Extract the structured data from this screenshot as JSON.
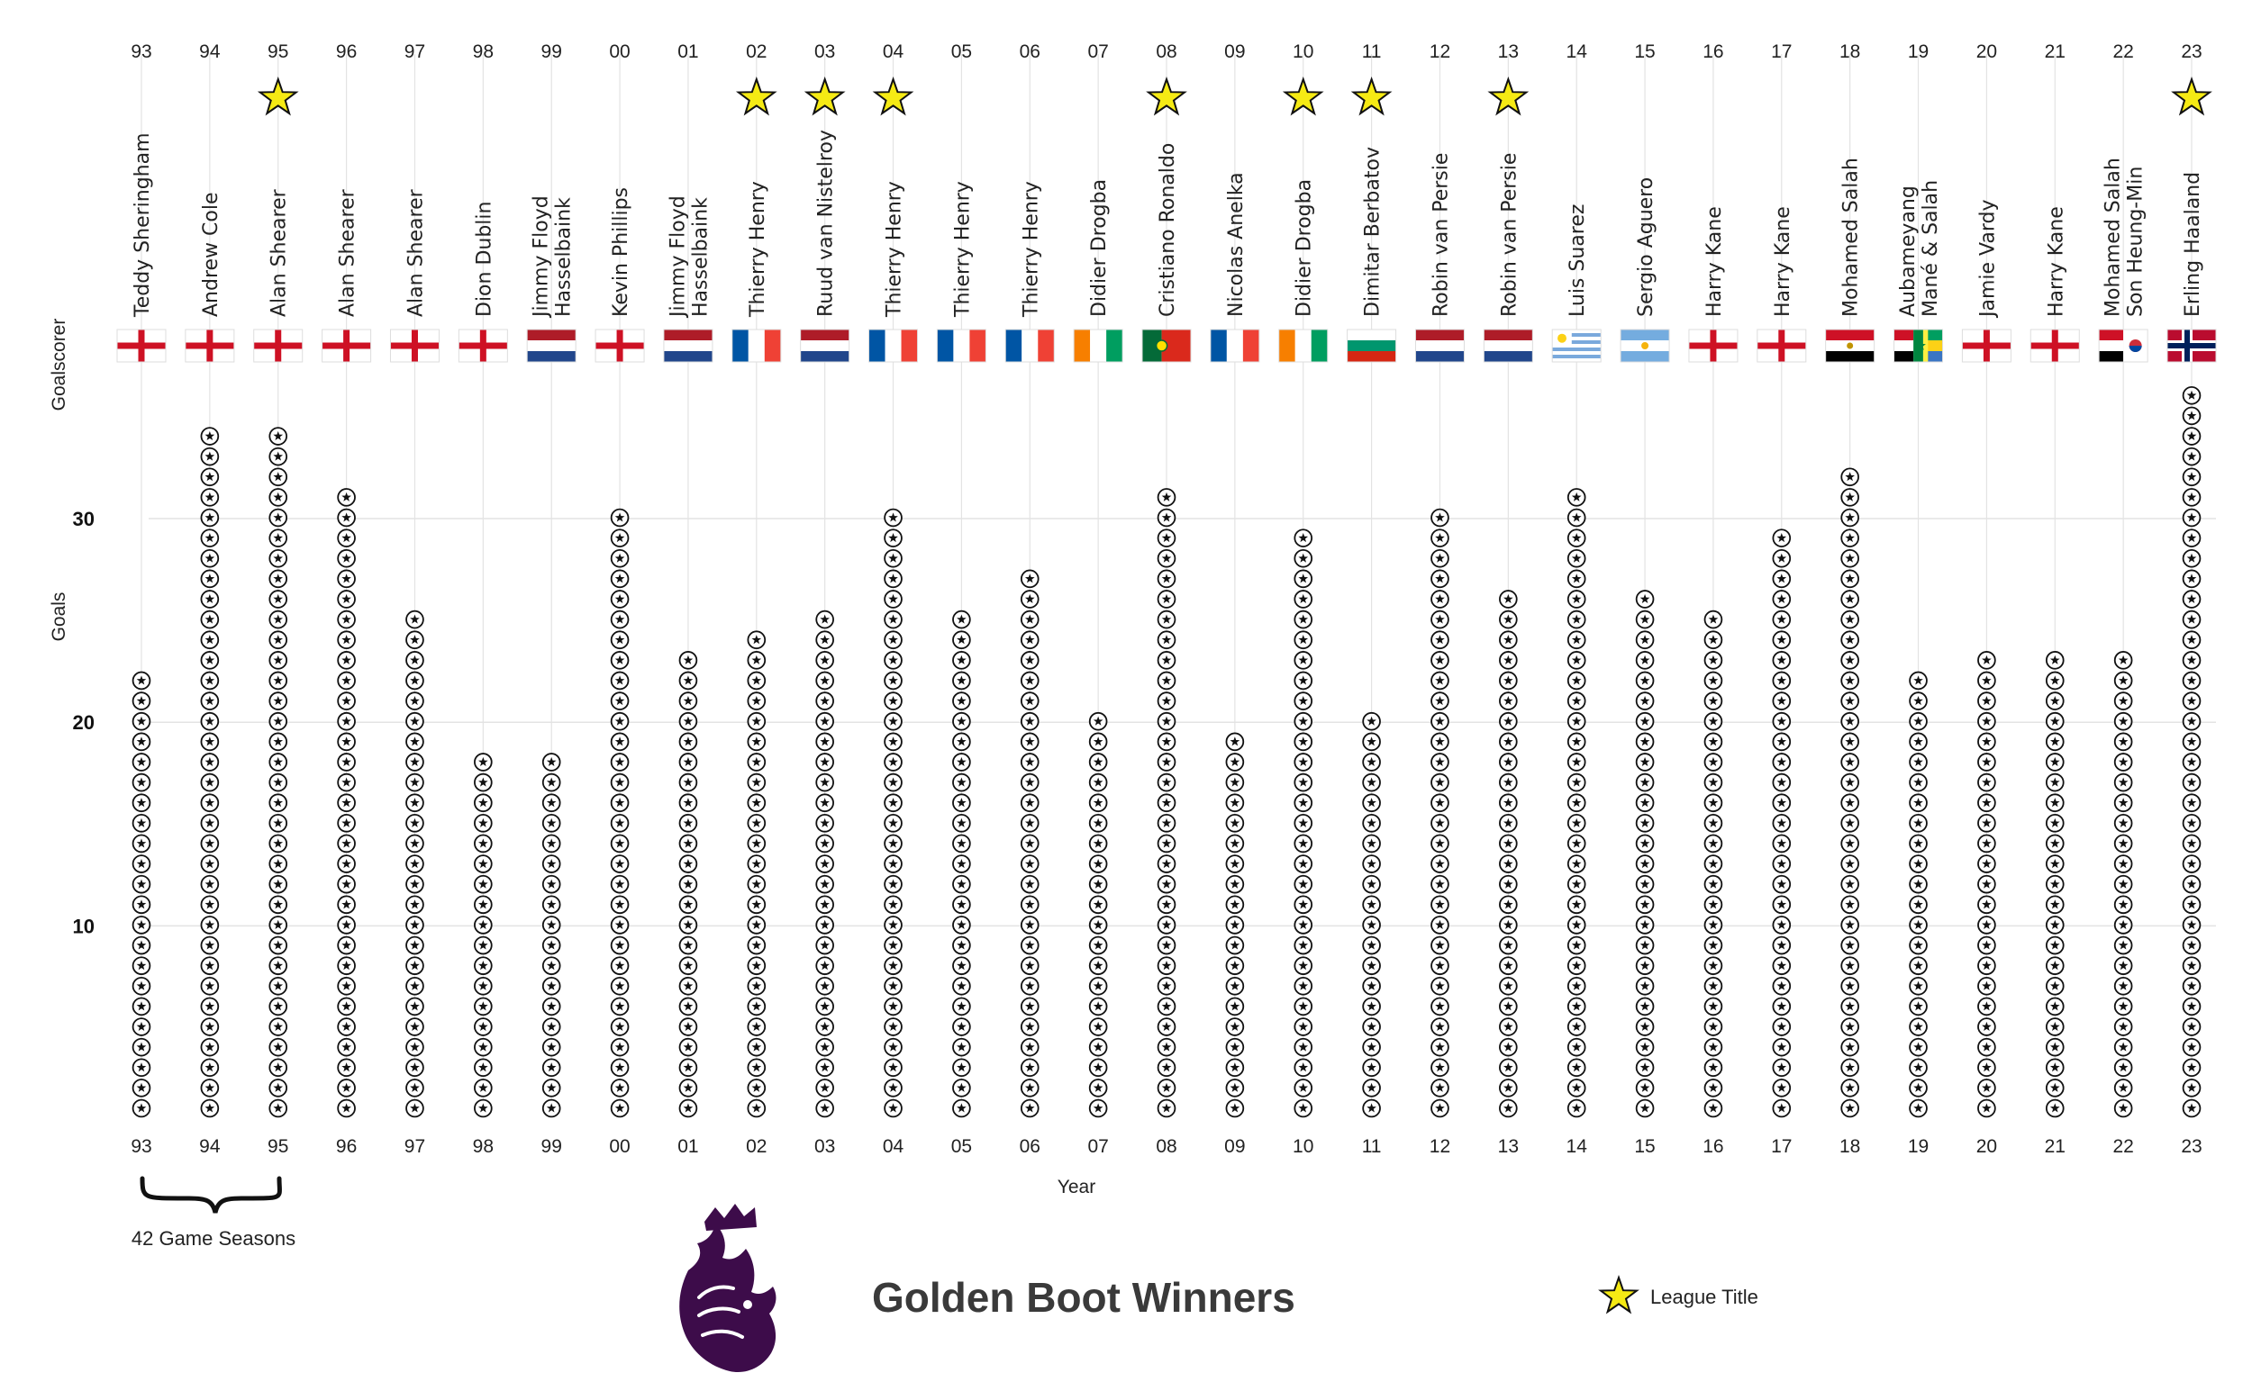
{
  "chart_data": {
    "type": "scatter",
    "title": "Golden Boot Winners",
    "xlabel": "Year",
    "ylabel": "Goals",
    "scorer_axis_label": "Goalscorer",
    "yticks": [
      10,
      20,
      30
    ],
    "ylim": [
      0,
      36
    ],
    "grid": true,
    "legend": {
      "label": "League Title",
      "placement": "bottom-right",
      "marker": "star"
    },
    "annotation": {
      "text": "42 Game Seasons",
      "span": [
        "93",
        "95"
      ]
    },
    "colors": {
      "star": "#f5ea14",
      "ball": "#111111",
      "logo": "#3d0c4a",
      "grid": "#e3e3e3"
    },
    "seasons": [
      {
        "year": "93",
        "scorer": [
          "Teddy Sheringham"
        ],
        "goals": 22,
        "title": false,
        "flag": "england"
      },
      {
        "year": "94",
        "scorer": [
          "Andrew Cole"
        ],
        "goals": 34,
        "title": false,
        "flag": "england"
      },
      {
        "year": "95",
        "scorer": [
          "Alan Shearer"
        ],
        "goals": 34,
        "title": true,
        "flag": "england"
      },
      {
        "year": "96",
        "scorer": [
          "Alan Shearer"
        ],
        "goals": 31,
        "title": false,
        "flag": "england"
      },
      {
        "year": "97",
        "scorer": [
          "Alan Shearer"
        ],
        "goals": 25,
        "title": false,
        "flag": "england"
      },
      {
        "year": "98",
        "scorer": [
          "Dion Dublin"
        ],
        "goals": 18,
        "title": false,
        "flag": "england"
      },
      {
        "year": "99",
        "scorer": [
          "Jimmy Floyd",
          "Hasselbaink"
        ],
        "goals": 18,
        "title": false,
        "flag": "netherlands"
      },
      {
        "year": "00",
        "scorer": [
          "Kevin Phillips"
        ],
        "goals": 30,
        "title": false,
        "flag": "england"
      },
      {
        "year": "01",
        "scorer": [
          "Jimmy Floyd",
          "Hasselbaink"
        ],
        "goals": 23,
        "title": false,
        "flag": "netherlands"
      },
      {
        "year": "02",
        "scorer": [
          "Thierry Henry"
        ],
        "goals": 24,
        "title": true,
        "flag": "france"
      },
      {
        "year": "03",
        "scorer": [
          "Ruud van Nistelroy"
        ],
        "goals": 25,
        "title": true,
        "flag": "netherlands"
      },
      {
        "year": "04",
        "scorer": [
          "Thierry Henry"
        ],
        "goals": 30,
        "title": true,
        "flag": "france"
      },
      {
        "year": "05",
        "scorer": [
          "Thierry Henry"
        ],
        "goals": 25,
        "title": false,
        "flag": "france"
      },
      {
        "year": "06",
        "scorer": [
          "Thierry Henry"
        ],
        "goals": 27,
        "title": false,
        "flag": "france"
      },
      {
        "year": "07",
        "scorer": [
          "Didier Drogba"
        ],
        "goals": 20,
        "title": false,
        "flag": "ivory"
      },
      {
        "year": "08",
        "scorer": [
          "Cristiano Ronaldo"
        ],
        "goals": 31,
        "title": true,
        "flag": "portugal"
      },
      {
        "year": "09",
        "scorer": [
          "Nicolas Anelka"
        ],
        "goals": 19,
        "title": false,
        "flag": "france"
      },
      {
        "year": "10",
        "scorer": [
          "Didier Drogba"
        ],
        "goals": 29,
        "title": true,
        "flag": "ivory"
      },
      {
        "year": "11",
        "scorer": [
          "Dimitar Berbatov"
        ],
        "goals": 20,
        "title": true,
        "flag": "bulgaria"
      },
      {
        "year": "12",
        "scorer": [
          "Robin van Persie"
        ],
        "goals": 30,
        "title": false,
        "flag": "netherlands"
      },
      {
        "year": "13",
        "scorer": [
          "Robin van Persie"
        ],
        "goals": 26,
        "title": true,
        "flag": "netherlands"
      },
      {
        "year": "14",
        "scorer": [
          "Luis Suarez"
        ],
        "goals": 31,
        "title": false,
        "flag": "uruguay"
      },
      {
        "year": "15",
        "scorer": [
          "Sergio Aguero"
        ],
        "goals": 26,
        "title": false,
        "flag": "argentina"
      },
      {
        "year": "16",
        "scorer": [
          "Harry Kane"
        ],
        "goals": 25,
        "title": false,
        "flag": "england"
      },
      {
        "year": "17",
        "scorer": [
          "Harry Kane"
        ],
        "goals": 29,
        "title": false,
        "flag": "england"
      },
      {
        "year": "18",
        "scorer": [
          "Mohamed Salah"
        ],
        "goals": 32,
        "title": false,
        "flag": "egypt"
      },
      {
        "year": "19",
        "scorer": [
          "Aubameyang",
          "Mané & Salah"
        ],
        "goals": 22,
        "title": false,
        "flag": "gabon_senegal_egypt"
      },
      {
        "year": "20",
        "scorer": [
          "Jamie Vardy"
        ],
        "goals": 23,
        "title": false,
        "flag": "england"
      },
      {
        "year": "21",
        "scorer": [
          "Harry Kane"
        ],
        "goals": 23,
        "title": false,
        "flag": "england"
      },
      {
        "year": "22",
        "scorer": [
          "Mohamed Salah",
          "Son Heung-Min"
        ],
        "goals": 23,
        "title": false,
        "flag": "egypt_korea"
      },
      {
        "year": "23",
        "scorer": [
          "Erling Haaland"
        ],
        "goals": 36,
        "title": true,
        "flag": "norway"
      }
    ]
  }
}
